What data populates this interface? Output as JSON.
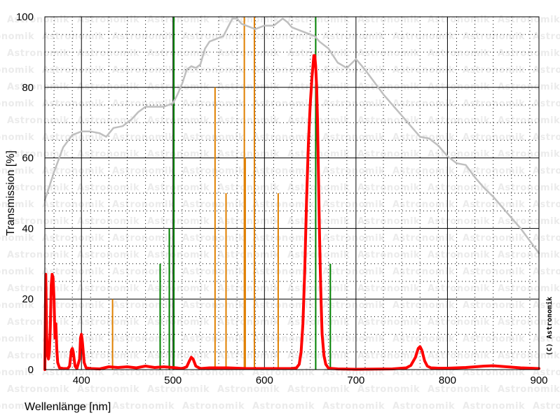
{
  "chart_data": {
    "type": "line",
    "title": "",
    "xlabel": "Wellenlänge [nm]",
    "ylabel": "Transmission [%]",
    "xlim": [
      360,
      900
    ],
    "ylim": [
      0,
      100
    ],
    "x_ticks": [
      400,
      500,
      600,
      700,
      800,
      900
    ],
    "y_ticks": [
      0,
      20,
      40,
      60,
      80,
      100
    ],
    "grid": true,
    "watermark": "Astronomik",
    "copyright": "(C) Astronomik",
    "colors": {
      "filter": "#ff0000",
      "sensitivity": "#bfbfbf",
      "emission_green": "#008000",
      "emission_orange": "#e08000",
      "grid": "#000000"
    },
    "series": [
      {
        "key": "filter",
        "values": [
          [
            360,
            0
          ],
          [
            361,
            27
          ],
          [
            362,
            10
          ],
          [
            363,
            4
          ],
          [
            364,
            3
          ],
          [
            365,
            5
          ],
          [
            366,
            12
          ],
          [
            367,
            24
          ],
          [
            368,
            27
          ],
          [
            369,
            26
          ],
          [
            370,
            20
          ],
          [
            371,
            9
          ],
          [
            372,
            13
          ],
          [
            373,
            6
          ],
          [
            374,
            2
          ],
          [
            376,
            0.5
          ],
          [
            380,
            0.3
          ],
          [
            385,
            0.3
          ],
          [
            387,
            1
          ],
          [
            389,
            5.5
          ],
          [
            390,
            6
          ],
          [
            391,
            5
          ],
          [
            393,
            1
          ],
          [
            395,
            0.3
          ],
          [
            398,
            3
          ],
          [
            399,
            9
          ],
          [
            400,
            10
          ],
          [
            401,
            8
          ],
          [
            403,
            2
          ],
          [
            405,
            0.5
          ],
          [
            410,
            0.3
          ],
          [
            420,
            0.2
          ],
          [
            430,
            0.8
          ],
          [
            440,
            0.6
          ],
          [
            450,
            0.8
          ],
          [
            460,
            0.5
          ],
          [
            470,
            1
          ],
          [
            480,
            0.6
          ],
          [
            490,
            0.8
          ],
          [
            500,
            0.6
          ],
          [
            510,
            0.3
          ],
          [
            515,
            0.8
          ],
          [
            518,
            2.5
          ],
          [
            520,
            3.5
          ],
          [
            522,
            3
          ],
          [
            525,
            1
          ],
          [
            530,
            0.3
          ],
          [
            540,
            0.5
          ],
          [
            560,
            0.5
          ],
          [
            580,
            0.3
          ],
          [
            600,
            0.3
          ],
          [
            620,
            0.3
          ],
          [
            630,
            0.3
          ],
          [
            635,
            0.5
          ],
          [
            638,
            1.5
          ],
          [
            640,
            5
          ],
          [
            642,
            13
          ],
          [
            644,
            28
          ],
          [
            646,
            48
          ],
          [
            648,
            64
          ],
          [
            650,
            75
          ],
          [
            652,
            83
          ],
          [
            653,
            86
          ],
          [
            654,
            89
          ],
          [
            655,
            89
          ],
          [
            656,
            86
          ],
          [
            657,
            80
          ],
          [
            658,
            70
          ],
          [
            659,
            55
          ],
          [
            660,
            40
          ],
          [
            661,
            28
          ],
          [
            662,
            18
          ],
          [
            663,
            10
          ],
          [
            665,
            4
          ],
          [
            667,
            1.5
          ],
          [
            670,
            0.4
          ],
          [
            680,
            0.2
          ],
          [
            700,
            0.1
          ],
          [
            740,
            0.2
          ],
          [
            755,
            0.5
          ],
          [
            760,
            1.2
          ],
          [
            765,
            3.5
          ],
          [
            768,
            6
          ],
          [
            770,
            6.5
          ],
          [
            772,
            5.5
          ],
          [
            775,
            2.5
          ],
          [
            778,
            1
          ],
          [
            782,
            0.5
          ],
          [
            790,
            0.4
          ],
          [
            800,
            0.4
          ],
          [
            820,
            0.6
          ],
          [
            840,
            1
          ],
          [
            850,
            1.1
          ],
          [
            860,
            0.9
          ],
          [
            880,
            0.5
          ],
          [
            900,
            0.3
          ]
        ]
      },
      {
        "key": "sensitivity",
        "values": [
          [
            360,
            48
          ],
          [
            370,
            56
          ],
          [
            380,
            63
          ],
          [
            390,
            66.5
          ],
          [
            400,
            67.5
          ],
          [
            410,
            67.5
          ],
          [
            420,
            67
          ],
          [
            427,
            66
          ],
          [
            435,
            68.5
          ],
          [
            445,
            69
          ],
          [
            455,
            71
          ],
          [
            462,
            73
          ],
          [
            470,
            74.5
          ],
          [
            480,
            74.5
          ],
          [
            490,
            74.5
          ],
          [
            500,
            75.5
          ],
          [
            505,
            78
          ],
          [
            510,
            81
          ],
          [
            515,
            85
          ],
          [
            520,
            86
          ],
          [
            525,
            85.5
          ],
          [
            530,
            86.5
          ],
          [
            535,
            91
          ],
          [
            540,
            93
          ],
          [
            550,
            94
          ],
          [
            555,
            94.5
          ],
          [
            560,
            97
          ],
          [
            565,
            99.5
          ],
          [
            570,
            99.5
          ],
          [
            575,
            98
          ],
          [
            580,
            97.5
          ],
          [
            590,
            96.5
          ],
          [
            600,
            97.5
          ],
          [
            605,
            97.5
          ],
          [
            610,
            97.5
          ],
          [
            615,
            98.5
          ],
          [
            620,
            99.5
          ],
          [
            625,
            98.5
          ],
          [
            630,
            97
          ],
          [
            640,
            96
          ],
          [
            645,
            95.5
          ],
          [
            650,
            95
          ],
          [
            655,
            94.5
          ],
          [
            660,
            93
          ],
          [
            670,
            91
          ],
          [
            680,
            87
          ],
          [
            690,
            85.5
          ],
          [
            700,
            88
          ],
          [
            710,
            85
          ],
          [
            720,
            81.5
          ],
          [
            730,
            78
          ],
          [
            740,
            75
          ],
          [
            750,
            72
          ],
          [
            760,
            69
          ],
          [
            770,
            66
          ],
          [
            780,
            65.5
          ],
          [
            790,
            63.5
          ],
          [
            800,
            60.5
          ],
          [
            810,
            58.5
          ],
          [
            820,
            58
          ],
          [
            830,
            54.5
          ],
          [
            840,
            51.5
          ],
          [
            850,
            49
          ],
          [
            860,
            46
          ],
          [
            870,
            43
          ],
          [
            880,
            40
          ],
          [
            890,
            36.5
          ],
          [
            900,
            33
          ]
        ]
      }
    ],
    "emission_lines": [
      {
        "wavelength": 434,
        "height": 20,
        "color": "orange"
      },
      {
        "wavelength": 486,
        "height": 30,
        "color": "green"
      },
      {
        "wavelength": 496,
        "height": 40,
        "color": "green"
      },
      {
        "wavelength": 501,
        "height": 100,
        "color": "green"
      },
      {
        "wavelength": 546,
        "height": 80,
        "color": "orange"
      },
      {
        "wavelength": 558,
        "height": 50,
        "color": "orange"
      },
      {
        "wavelength": 578,
        "height": 100,
        "color": "orange"
      },
      {
        "wavelength": 579,
        "height": 60,
        "color": "orange"
      },
      {
        "wavelength": 589,
        "height": 100,
        "color": "orange"
      },
      {
        "wavelength": 615,
        "height": 50,
        "color": "orange"
      },
      {
        "wavelength": 656,
        "height": 100,
        "color": "green"
      },
      {
        "wavelength": 672,
        "height": 30,
        "color": "green"
      }
    ]
  }
}
